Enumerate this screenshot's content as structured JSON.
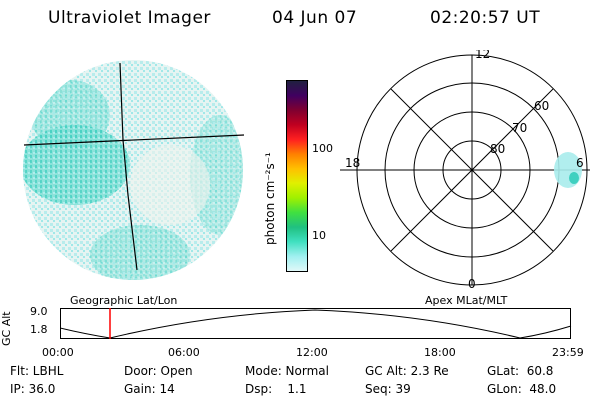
{
  "header": {
    "instrument": "Ultraviolet Imager",
    "date": "04 Jun 07",
    "time": "02:20:57 UT"
  },
  "colorbar": {
    "unit_label": "photon cm⁻²s⁻¹",
    "tick_100": "100",
    "tick_10": "10",
    "colors": [
      "#202040",
      "#400060",
      "#800030",
      "#c00020",
      "#ff2020",
      "#ff8000",
      "#ffc000",
      "#e0f000",
      "#a0f000",
      "#40e040",
      "#20c080",
      "#40e0c0",
      "#a0f0f0",
      "#e0f8f8"
    ]
  },
  "geo_panel": {
    "label": "Geographic Lat/Lon"
  },
  "polar_panel": {
    "label": "Apex MLat/MLT",
    "mlt_top": "12",
    "mlt_left": "18",
    "mlt_right": "6",
    "mlt_bottom": "0",
    "lat_60": "60",
    "lat_70": "70",
    "lat_80": "80"
  },
  "orbit_plot": {
    "ylabel": "GC Alt",
    "y_max": "9.0",
    "y_min": "1.8",
    "time_ticks": [
      "00:00",
      "06:00",
      "12:00",
      "18:00",
      "23:59"
    ],
    "marker_color": "#ff0000"
  },
  "status": {
    "flt": "Flt: LBHL",
    "ip": "IP: 36.0",
    "door": "Door: Open",
    "gain": "Gain: 14",
    "mode": "Mode: Normal",
    "dsp": "Dsp:    1.1",
    "gc_alt": "GC Alt: 2.3 Re",
    "seq": "Seq: 39",
    "glat": "GLat:  60.8",
    "glon": "GLon:  48.0"
  }
}
